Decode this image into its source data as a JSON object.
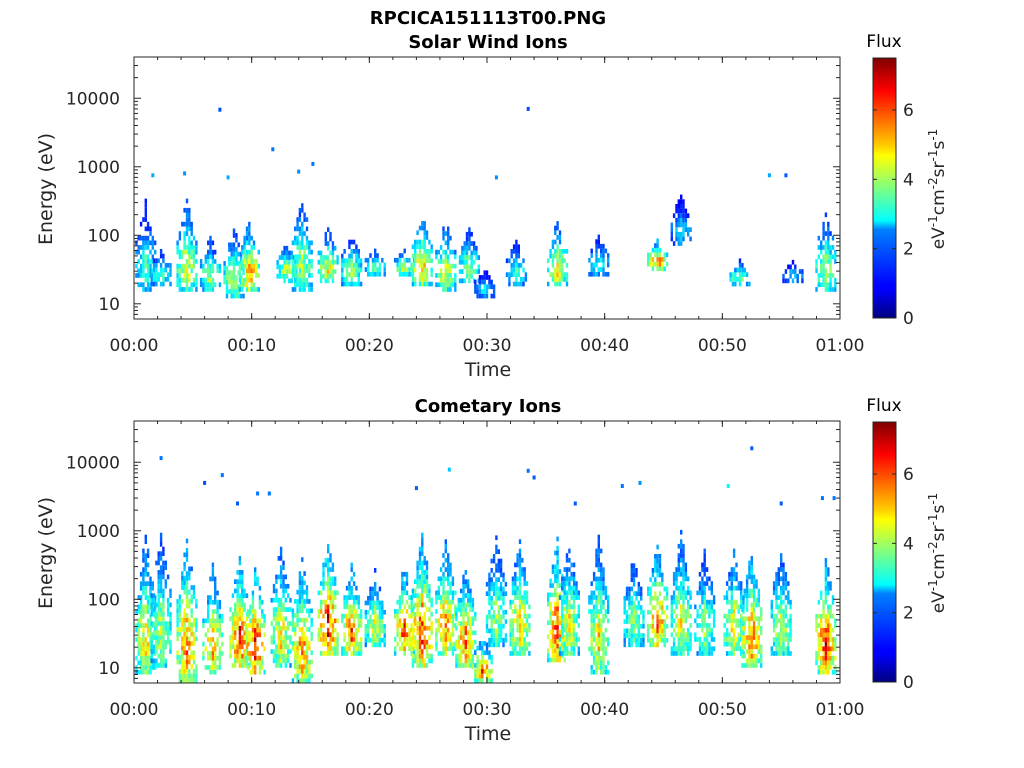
{
  "figure_title": "RPCICA151113T00.PNG",
  "chart_data": [
    {
      "type": "heatmap",
      "title": "Solar Wind Ions",
      "xlabel": "Time",
      "ylabel": "Energy (eV)",
      "x_ticks": [
        "00:00",
        "00:10",
        "00:20",
        "00:30",
        "00:40",
        "00:50",
        "01:00"
      ],
      "x_range_minutes": [
        0,
        60
      ],
      "y_scale": "log",
      "y_ticks": [
        10,
        100,
        1000,
        10000
      ],
      "y_tick_labels": [
        "10",
        "100",
        "1000",
        "10000"
      ],
      "ylim": [
        6,
        40000
      ],
      "colorbar": {
        "title": "Flux",
        "unit_label": "eV-1cm-2sr-1s-1",
        "ticks": [
          0,
          2,
          4,
          6
        ],
        "tick_labels": [
          "0",
          "2",
          "4",
          "6"
        ],
        "range": [
          0,
          7.5
        ],
        "colormap": "jet"
      },
      "clusters": [
        {
          "t": 1.0,
          "emin": 15,
          "emax": 300,
          "peak": 3.2
        },
        {
          "t": 2.3,
          "emin": 18,
          "emax": 60,
          "peak": 3.5
        },
        {
          "t": 4.5,
          "emin": 15,
          "emax": 300,
          "peak": 4.5
        },
        {
          "t": 6.5,
          "emin": 15,
          "emax": 90,
          "peak": 4.0
        },
        {
          "t": 8.5,
          "emin": 12,
          "emax": 120,
          "peak": 4.3
        },
        {
          "t": 9.8,
          "emin": 15,
          "emax": 150,
          "peak": 5.3
        },
        {
          "t": 13.0,
          "emin": 20,
          "emax": 80,
          "peak": 4.2
        },
        {
          "t": 14.3,
          "emin": 15,
          "emax": 350,
          "peak": 4.2
        },
        {
          "t": 16.5,
          "emin": 20,
          "emax": 120,
          "peak": 4.6
        },
        {
          "t": 18.5,
          "emin": 18,
          "emax": 100,
          "peak": 4.0
        },
        {
          "t": 20.5,
          "emin": 25,
          "emax": 60,
          "peak": 3.6
        },
        {
          "t": 23.0,
          "emin": 25,
          "emax": 60,
          "peak": 4.4
        },
        {
          "t": 24.5,
          "emin": 18,
          "emax": 200,
          "peak": 5.0
        },
        {
          "t": 26.5,
          "emin": 15,
          "emax": 150,
          "peak": 4.5
        },
        {
          "t": 28.5,
          "emin": 20,
          "emax": 120,
          "peak": 4.0
        },
        {
          "t": 29.8,
          "emin": 12,
          "emax": 30,
          "peak": 2.6
        },
        {
          "t": 32.5,
          "emin": 18,
          "emax": 80,
          "peak": 3.2
        },
        {
          "t": 36.0,
          "emin": 18,
          "emax": 150,
          "peak": 4.7
        },
        {
          "t": 39.5,
          "emin": 25,
          "emax": 100,
          "peak": 3.0
        },
        {
          "t": 44.5,
          "emin": 30,
          "emax": 80,
          "peak": 5.6
        },
        {
          "t": 46.5,
          "emin": 70,
          "emax": 350,
          "peak": 2.6
        },
        {
          "t": 51.5,
          "emin": 18,
          "emax": 40,
          "peak": 4.0
        },
        {
          "t": 56.0,
          "emin": 20,
          "emax": 40,
          "peak": 2.6
        },
        {
          "t": 58.8,
          "emin": 15,
          "emax": 200,
          "peak": 4.2
        }
      ],
      "sparse_points": [
        {
          "t": 7.3,
          "e": 6800,
          "v": 1.5
        },
        {
          "t": 33.5,
          "e": 7000,
          "v": 1.5
        },
        {
          "t": 11.8,
          "e": 1800,
          "v": 1.8
        },
        {
          "t": 15.2,
          "e": 1100,
          "v": 1.8
        },
        {
          "t": 14.0,
          "e": 850,
          "v": 2.0
        },
        {
          "t": 4.3,
          "e": 800,
          "v": 2.0
        },
        {
          "t": 1.6,
          "e": 750,
          "v": 2.2
        },
        {
          "t": 54.0,
          "e": 750,
          "v": 2.2
        },
        {
          "t": 55.4,
          "e": 750,
          "v": 1.6
        },
        {
          "t": 8.0,
          "e": 700,
          "v": 2.2
        },
        {
          "t": 30.8,
          "e": 700,
          "v": 2.0
        }
      ]
    },
    {
      "type": "heatmap",
      "title": "Cometary Ions",
      "xlabel": "Time",
      "ylabel": "Energy (eV)",
      "x_ticks": [
        "00:00",
        "00:10",
        "00:20",
        "00:30",
        "00:40",
        "00:50",
        "01:00"
      ],
      "x_range_minutes": [
        0,
        60
      ],
      "y_scale": "log",
      "y_ticks": [
        10,
        100,
        1000,
        10000
      ],
      "y_tick_labels": [
        "10",
        "100",
        "1000",
        "10000"
      ],
      "ylim": [
        6,
        40000
      ],
      "colorbar": {
        "title": "Flux",
        "unit_label": "eV-1cm-2sr-1s-1",
        "ticks": [
          0,
          2,
          4,
          6
        ],
        "tick_labels": [
          "0",
          "2",
          "4",
          "6"
        ],
        "range": [
          0,
          7.5
        ],
        "colormap": "jet"
      },
      "clusters": [
        {
          "t": 1.0,
          "emin": 8,
          "emax": 800,
          "peak": 4.8
        },
        {
          "t": 2.3,
          "emin": 10,
          "emax": 900,
          "peak": 4.2
        },
        {
          "t": 4.5,
          "emin": 6,
          "emax": 800,
          "peak": 5.6
        },
        {
          "t": 6.7,
          "emin": 8,
          "emax": 300,
          "peak": 5.2
        },
        {
          "t": 9.0,
          "emin": 10,
          "emax": 400,
          "peak": 6.2
        },
        {
          "t": 10.3,
          "emin": 8,
          "emax": 300,
          "peak": 6.3
        },
        {
          "t": 12.5,
          "emin": 10,
          "emax": 600,
          "peak": 4.8
        },
        {
          "t": 14.3,
          "emin": 6,
          "emax": 400,
          "peak": 5.6
        },
        {
          "t": 16.5,
          "emin": 15,
          "emax": 700,
          "peak": 6.6
        },
        {
          "t": 18.5,
          "emin": 15,
          "emax": 300,
          "peak": 5.8
        },
        {
          "t": 20.5,
          "emin": 20,
          "emax": 250,
          "peak": 4.5
        },
        {
          "t": 23.0,
          "emin": 15,
          "emax": 300,
          "peak": 6.0
        },
        {
          "t": 24.5,
          "emin": 10,
          "emax": 900,
          "peak": 6.2
        },
        {
          "t": 26.5,
          "emin": 15,
          "emax": 700,
          "peak": 5.5
        },
        {
          "t": 28.2,
          "emin": 10,
          "emax": 300,
          "peak": 5.6
        },
        {
          "t": 29.6,
          "emin": 6,
          "emax": 25,
          "peak": 6.0
        },
        {
          "t": 30.8,
          "emin": 20,
          "emax": 800,
          "peak": 4.0
        },
        {
          "t": 32.8,
          "emin": 15,
          "emax": 700,
          "peak": 5.0
        },
        {
          "t": 36.0,
          "emin": 12,
          "emax": 800,
          "peak": 6.0
        },
        {
          "t": 37.0,
          "emin": 15,
          "emax": 700,
          "peak": 4.6
        },
        {
          "t": 39.5,
          "emin": 8,
          "emax": 800,
          "peak": 4.8
        },
        {
          "t": 42.5,
          "emin": 20,
          "emax": 400,
          "peak": 4.0
        },
        {
          "t": 44.5,
          "emin": 20,
          "emax": 600,
          "peak": 5.8
        },
        {
          "t": 46.5,
          "emin": 15,
          "emax": 900,
          "peak": 4.6
        },
        {
          "t": 48.5,
          "emin": 15,
          "emax": 500,
          "peak": 4.0
        },
        {
          "t": 51.0,
          "emin": 15,
          "emax": 500,
          "peak": 4.8
        },
        {
          "t": 52.5,
          "emin": 10,
          "emax": 500,
          "peak": 5.8
        },
        {
          "t": 55.0,
          "emin": 15,
          "emax": 500,
          "peak": 4.4
        },
        {
          "t": 58.8,
          "emin": 8,
          "emax": 400,
          "peak": 6.1
        }
      ],
      "sparse_points": [
        {
          "t": 2.3,
          "e": 11500,
          "v": 1.8
        },
        {
          "t": 52.5,
          "e": 16000,
          "v": 1.6
        },
        {
          "t": 26.8,
          "e": 7800,
          "v": 2.4
        },
        {
          "t": 33.5,
          "e": 7500,
          "v": 1.8
        },
        {
          "t": 7.5,
          "e": 6500,
          "v": 1.8
        },
        {
          "t": 34.0,
          "e": 6000,
          "v": 1.6
        },
        {
          "t": 43.0,
          "e": 5000,
          "v": 2.0
        },
        {
          "t": 41.5,
          "e": 4500,
          "v": 1.8
        },
        {
          "t": 6.0,
          "e": 5000,
          "v": 1.5
        },
        {
          "t": 24.0,
          "e": 4200,
          "v": 1.6
        },
        {
          "t": 10.5,
          "e": 3500,
          "v": 1.8
        },
        {
          "t": 11.5,
          "e": 3500,
          "v": 1.8
        },
        {
          "t": 50.5,
          "e": 4500,
          "v": 2.8
        },
        {
          "t": 59.5,
          "e": 3000,
          "v": 1.8
        },
        {
          "t": 58.5,
          "e": 3000,
          "v": 1.8
        },
        {
          "t": 8.8,
          "e": 2500,
          "v": 1.6
        },
        {
          "t": 37.5,
          "e": 2500,
          "v": 1.6
        },
        {
          "t": 55.0,
          "e": 2500,
          "v": 1.6
        }
      ]
    }
  ]
}
